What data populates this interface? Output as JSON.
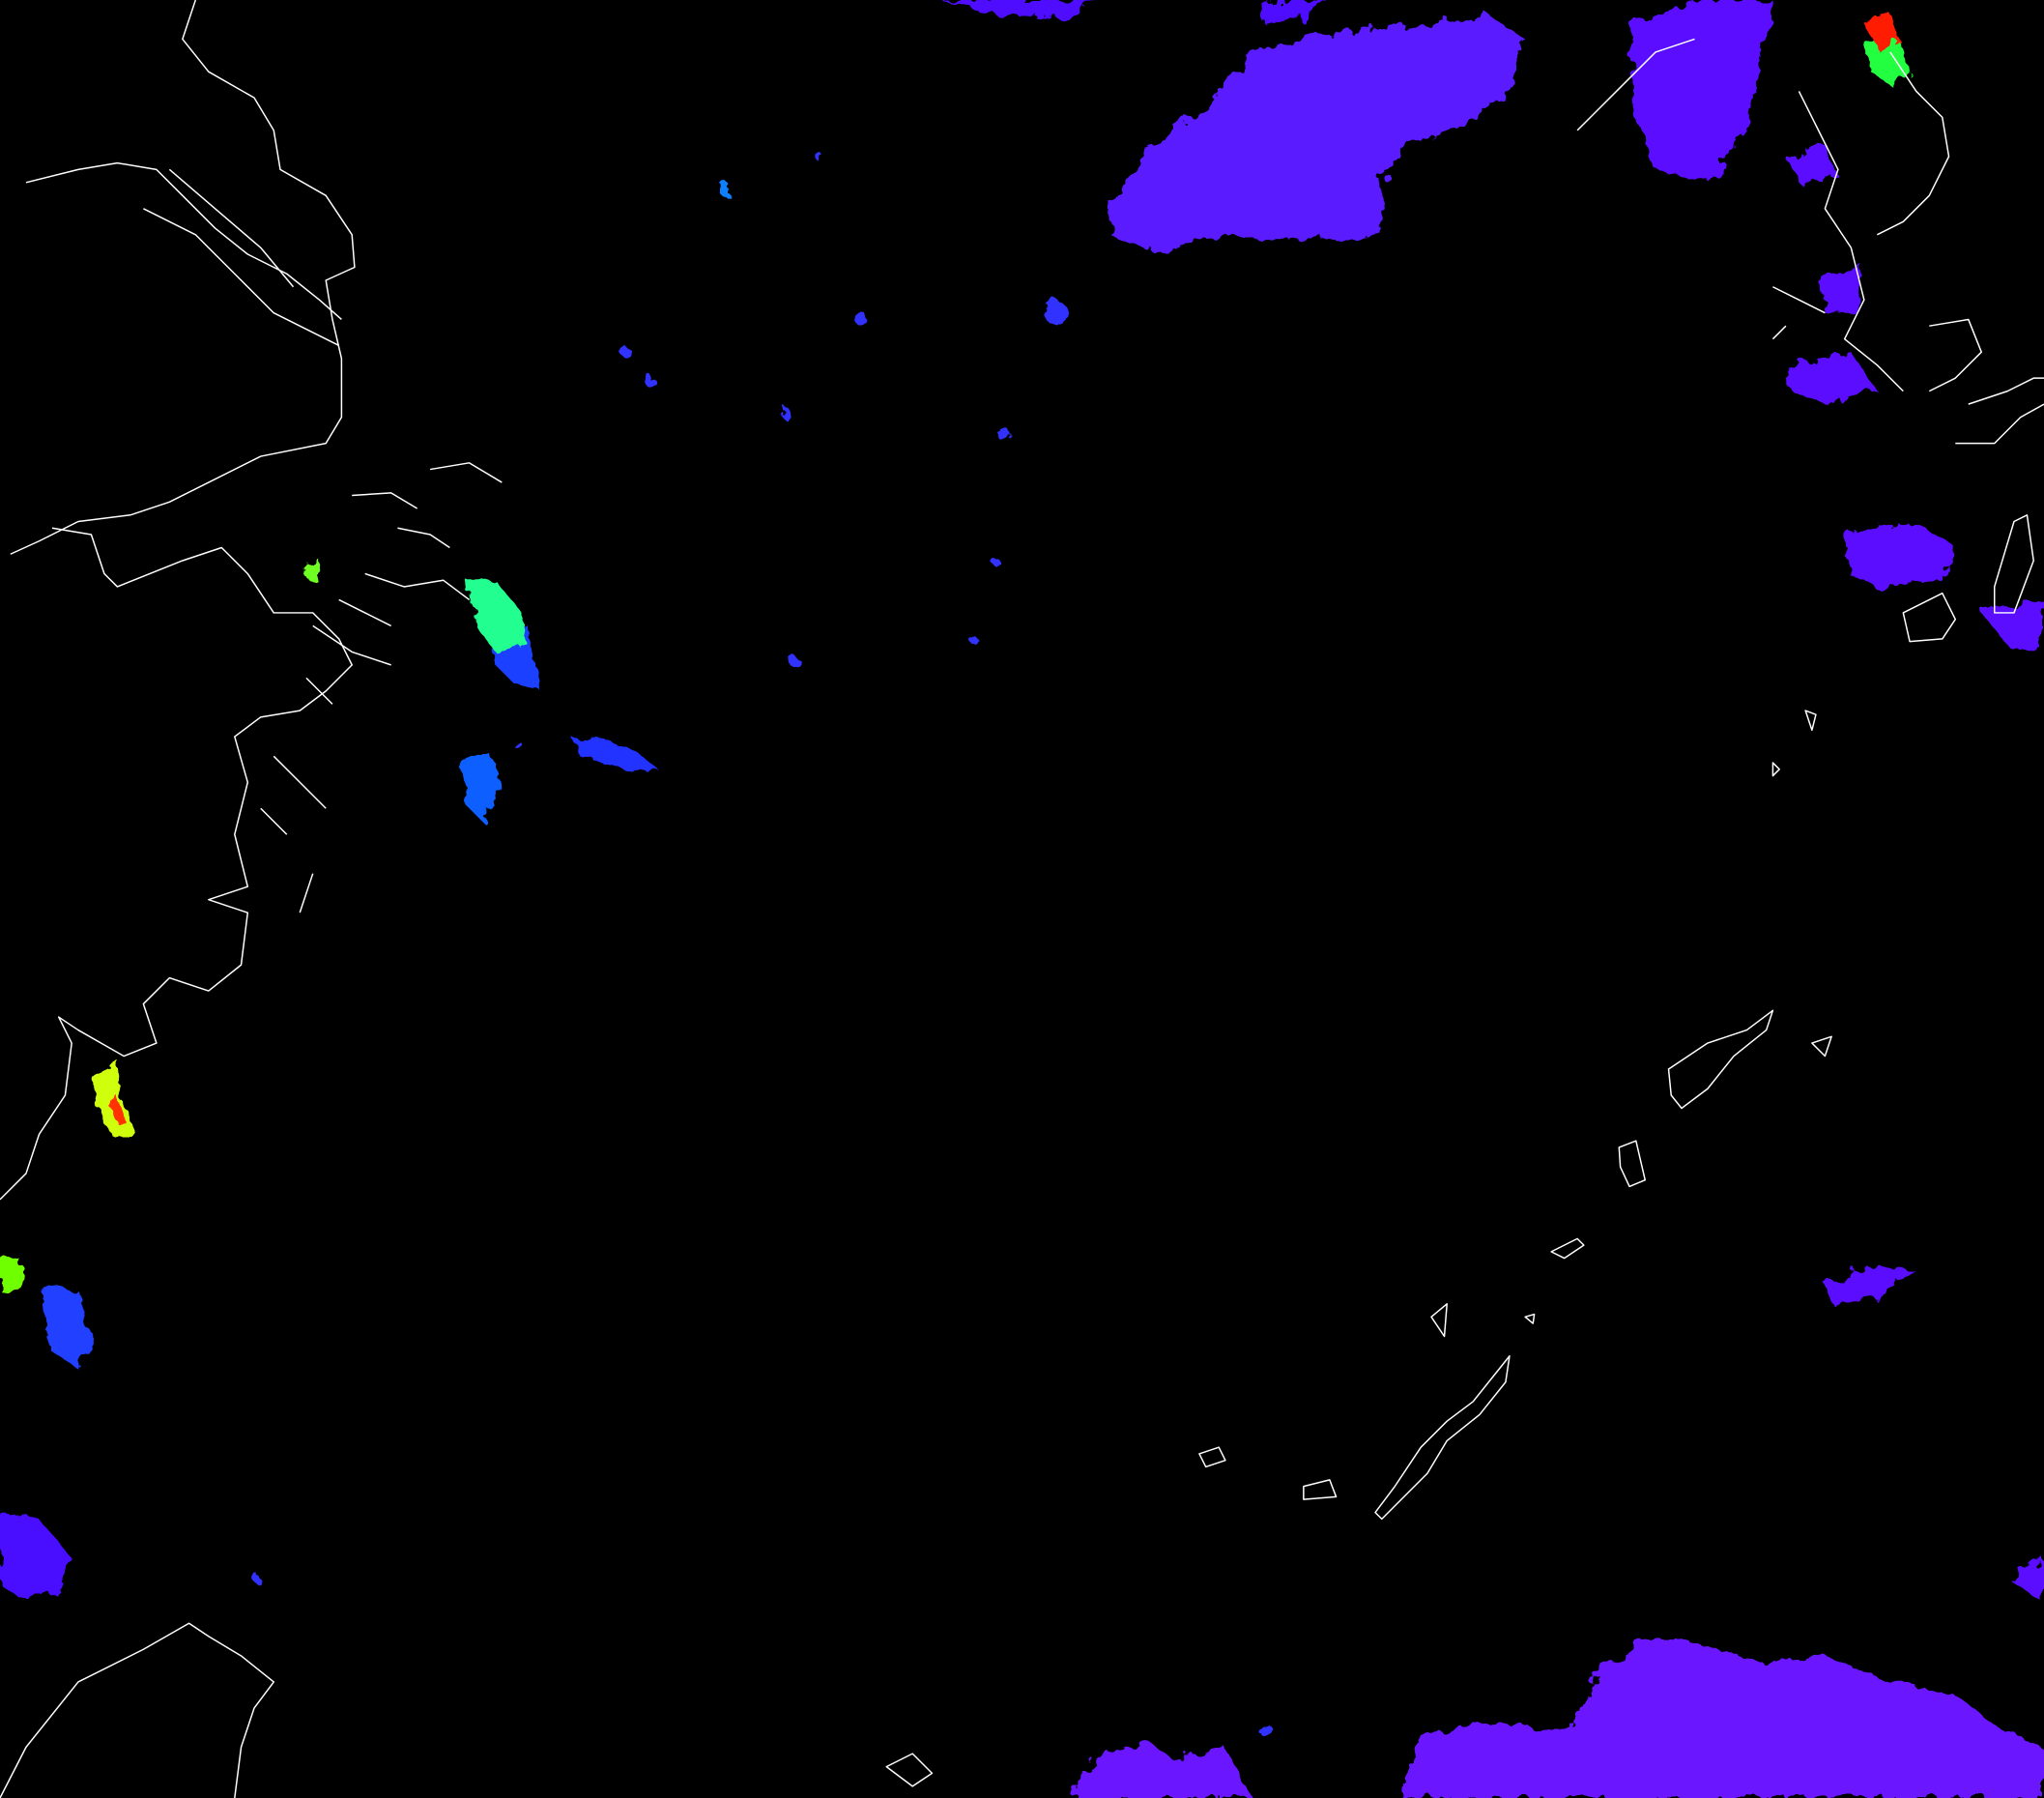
{
  "map": {
    "background_color": "#000000",
    "coastline_color": "#ffffff",
    "colorscale": [
      "#5a00ff",
      "#2a2aff",
      "#1060ff",
      "#00c8ff",
      "#00ff90",
      "#80ff00",
      "#e0ff00",
      "#ffa000",
      "#ff2000"
    ],
    "layers": [
      "coastlines",
      "satellite-cloud-product-overlay"
    ]
  }
}
